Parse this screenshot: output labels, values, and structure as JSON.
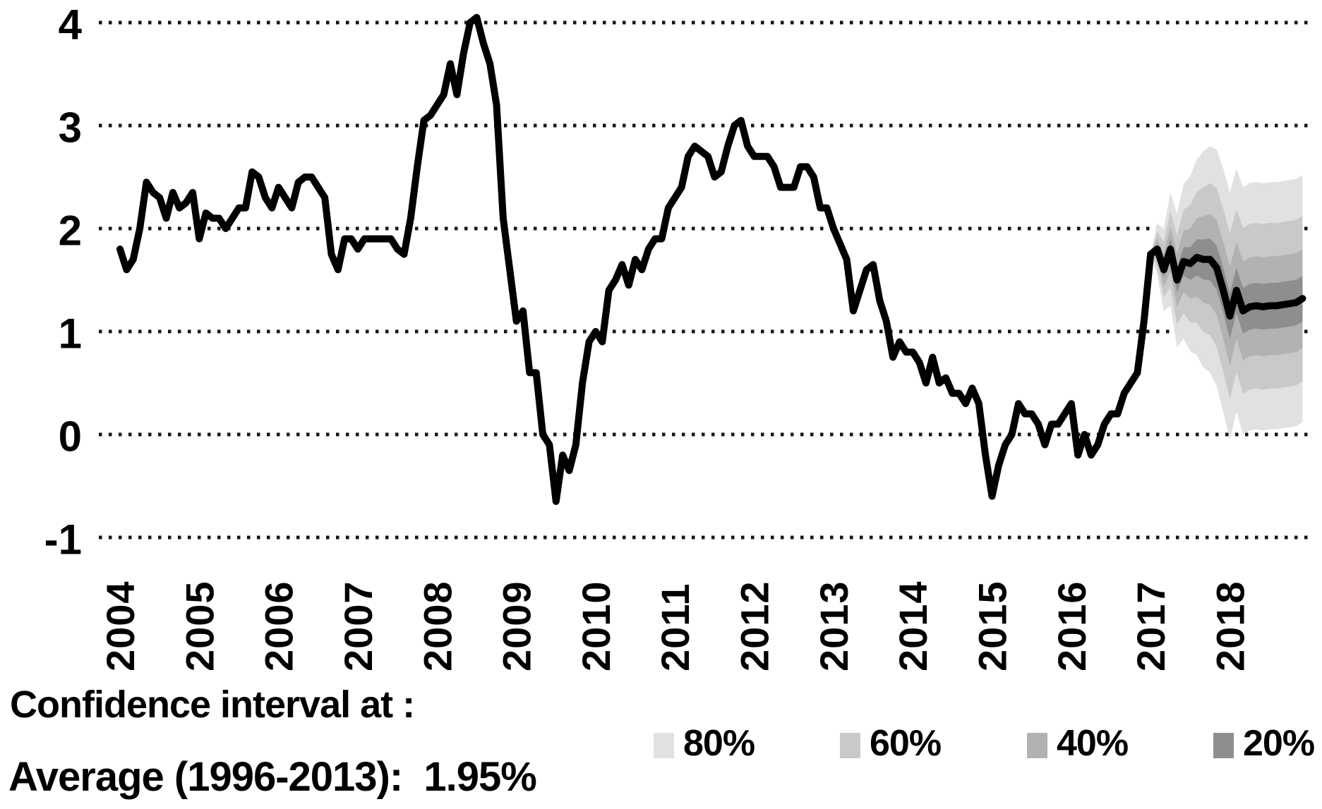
{
  "captions": {
    "confidence_interval": "Confidence interval at :",
    "average": "Average (1996-2013):  1.95%"
  },
  "legend": {
    "items": [
      {
        "label": "80%",
        "color": "#e1e1e1"
      },
      {
        "label": "60%",
        "color": "#c9c9c9"
      },
      {
        "label": "40%",
        "color": "#b2b2b2"
      },
      {
        "label": "20%",
        "color": "#8e8e8e"
      }
    ]
  },
  "colors": {
    "line": "#000000",
    "gridline": "#141414",
    "band_80": "#e1e1e1",
    "band_60": "#c9c9c9",
    "band_40": "#b2b2b2",
    "band_20": "#8e8e8e"
  },
  "chart_data": {
    "type": "line",
    "subtype": "fan-chart",
    "frequency": "monthly",
    "start": "2004-01",
    "ylim": [
      -1,
      4
    ],
    "y_ticks": [
      4,
      3,
      2,
      1,
      0,
      -1
    ],
    "x_tick_years": [
      "2004",
      "2005",
      "2006",
      "2007",
      "2008",
      "2009",
      "2010",
      "2011",
      "2012",
      "2013",
      "2014",
      "2015",
      "2016",
      "2017",
      "2018"
    ],
    "grid": "dotted-horizontal",
    "legend_position": "bottom",
    "history": [
      1.8,
      1.6,
      1.7,
      2.0,
      2.45,
      2.35,
      2.3,
      2.1,
      2.35,
      2.2,
      2.25,
      2.35,
      1.9,
      2.15,
      2.1,
      2.1,
      2.0,
      2.1,
      2.2,
      2.2,
      2.55,
      2.5,
      2.3,
      2.2,
      2.4,
      2.3,
      2.2,
      2.45,
      2.5,
      2.5,
      2.4,
      2.3,
      1.75,
      1.6,
      1.9,
      1.9,
      1.8,
      1.9,
      1.9,
      1.9,
      1.9,
      1.9,
      1.8,
      1.75,
      2.1,
      2.6,
      3.05,
      3.1,
      3.2,
      3.3,
      3.6,
      3.3,
      3.7,
      4.0,
      4.05,
      3.8,
      3.6,
      3.2,
      2.1,
      1.6,
      1.1,
      1.2,
      0.6,
      0.6,
      0.0,
      -0.1,
      -0.65,
      -0.2,
      -0.35,
      -0.1,
      0.5,
      0.9,
      1.0,
      0.9,
      1.4,
      1.5,
      1.65,
      1.45,
      1.7,
      1.6,
      1.8,
      1.9,
      1.9,
      2.2,
      2.3,
      2.4,
      2.7,
      2.8,
      2.75,
      2.7,
      2.5,
      2.55,
      2.8,
      3.0,
      3.05,
      2.8,
      2.7,
      2.7,
      2.7,
      2.6,
      2.4,
      2.4,
      2.4,
      2.6,
      2.6,
      2.5,
      2.2,
      2.2,
      2.0,
      1.85,
      1.7,
      1.2,
      1.4,
      1.6,
      1.65,
      1.3,
      1.1,
      0.75,
      0.9,
      0.8,
      0.8,
      0.7,
      0.5,
      0.75,
      0.5,
      0.55,
      0.4,
      0.4,
      0.3,
      0.45,
      0.3,
      -0.2,
      -0.6,
      -0.3,
      -0.1,
      0.0,
      0.3,
      0.2,
      0.2,
      0.1,
      -0.1,
      0.1,
      0.1,
      0.2,
      0.3,
      -0.2,
      0.0,
      -0.2,
      -0.1,
      0.1,
      0.2,
      0.2,
      0.4,
      0.5,
      0.6,
      1.1,
      1.75
    ],
    "forecast": {
      "start": "2017-02",
      "center": [
        1.8,
        1.6,
        1.8,
        1.5,
        1.68,
        1.66,
        1.72,
        1.7,
        1.7,
        1.62,
        1.4,
        1.15,
        1.4,
        1.2,
        1.24,
        1.25,
        1.24,
        1.25,
        1.25,
        1.26,
        1.27,
        1.28,
        1.32
      ],
      "ci_levels": [
        80,
        60,
        40,
        20
      ],
      "half_width_80": [
        0.25,
        0.4,
        0.55,
        0.65,
        0.75,
        0.85,
        0.95,
        1.05,
        1.1,
        1.15,
        1.18,
        1.2,
        1.18,
        1.2,
        1.2,
        1.2,
        1.2,
        1.2,
        1.2,
        1.2,
        1.2,
        1.2,
        1.2
      ],
      "half_width_ratios": {
        "80": 1.0,
        "60": 0.67,
        "40": 0.4,
        "20": 0.185
      }
    },
    "annotations": {
      "confidence_caption": "Confidence interval at :",
      "average_caption": "Average (1996-2013):  1.95%",
      "average_value": "1.95%"
    }
  }
}
